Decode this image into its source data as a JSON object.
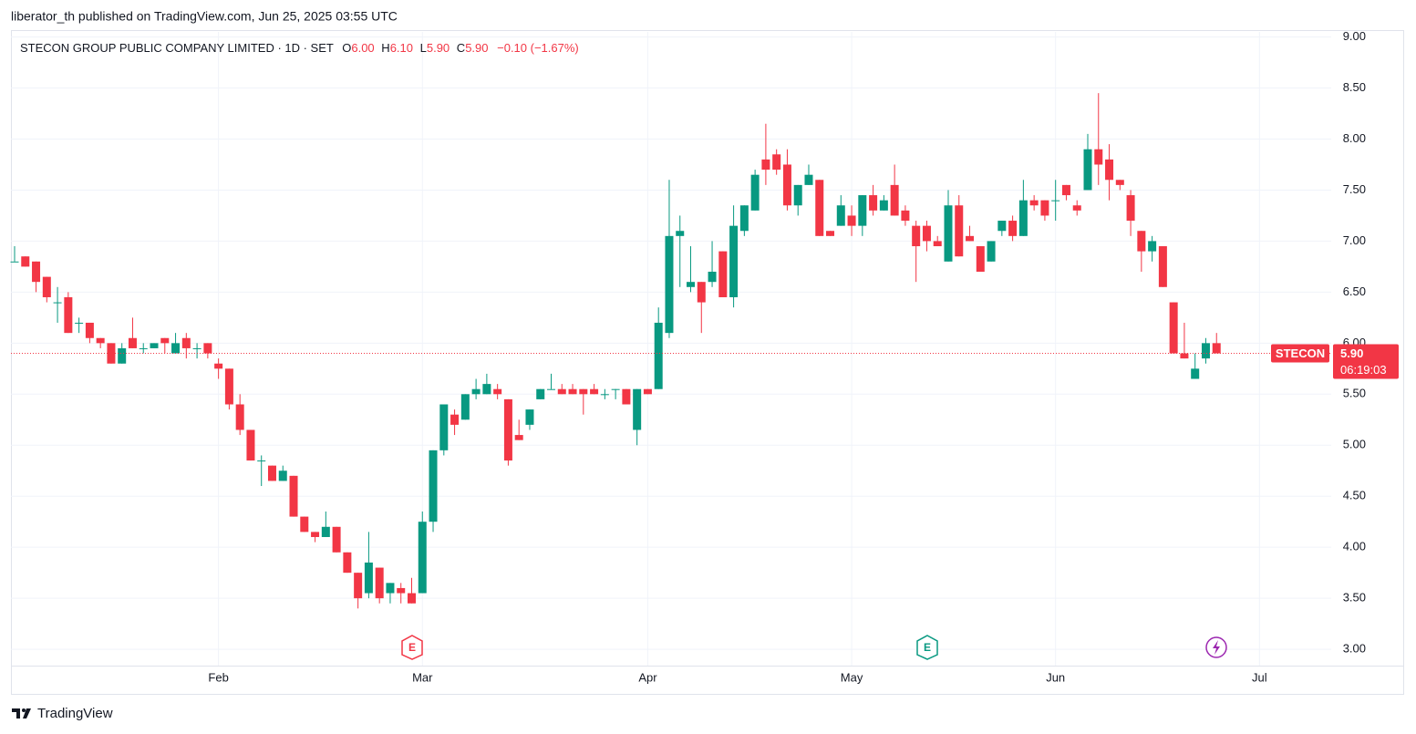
{
  "header": {
    "attribution": "liberator_th published on TradingView.com, Jun 25, 2025 03:55 UTC"
  },
  "footer": {
    "brand": "TradingView"
  },
  "chart_data": {
    "type": "candlestick",
    "title": "STECON GROUP PUBLIC COMPANY LIMITED · 1D · SET",
    "legend": [
      {
        "key": "O",
        "label": "6.00"
      },
      {
        "key": "H",
        "label": "6.10"
      },
      {
        "key": "L",
        "label": "5.90"
      },
      {
        "key": "C",
        "label": "5.90"
      }
    ],
    "change": "−0.10 (−1.67%)",
    "up_color": "#089981",
    "down_color": "#f23645",
    "grid": true,
    "categories": [
      null,
      null,
      null,
      null,
      null,
      null,
      null,
      null,
      null,
      null,
      null,
      null,
      null,
      null,
      null,
      null,
      null,
      null,
      null,
      "Feb",
      null,
      null,
      null,
      null,
      null,
      null,
      null,
      null,
      null,
      null,
      null,
      null,
      null,
      null,
      null,
      null,
      null,
      null,
      "Mar",
      null,
      null,
      null,
      null,
      null,
      null,
      null,
      null,
      null,
      null,
      null,
      null,
      null,
      null,
      null,
      null,
      null,
      null,
      null,
      null,
      "Apr",
      null,
      null,
      null,
      null,
      null,
      null,
      null,
      null,
      null,
      null,
      null,
      null,
      null,
      null,
      null,
      null,
      null,
      null,
      "May",
      null,
      null,
      null,
      null,
      null,
      null,
      null,
      null,
      null,
      null,
      null,
      null,
      null,
      null,
      null,
      null,
      null,
      null,
      "Jun",
      null,
      null,
      null,
      null,
      null,
      null,
      null,
      null,
      null,
      null,
      null,
      null,
      null,
      null,
      null,
      null,
      null,
      null,
      "Jul",
      null,
      null,
      null,
      null,
      null,
      null
    ],
    "open": [
      6.8,
      6.85,
      6.8,
      6.65,
      6.4,
      6.45,
      6.2,
      6.2,
      6.05,
      6.0,
      5.8,
      6.05,
      5.95,
      5.95,
      6.05,
      5.9,
      6.05,
      5.95,
      6.0,
      5.8,
      5.75,
      5.4,
      5.15,
      4.85,
      4.8,
      4.65,
      4.7,
      4.3,
      4.15,
      4.1,
      4.2,
      3.95,
      3.75,
      3.55,
      3.8,
      3.55,
      3.6,
      3.55,
      3.55,
      4.25,
      4.95,
      5.3,
      5.25,
      5.5,
      5.5,
      5.55,
      5.45,
      5.1,
      5.2,
      5.45,
      5.55,
      5.55,
      5.55,
      5.55,
      5.55,
      5.5,
      5.55,
      5.55,
      5.15,
      5.55,
      5.55,
      6.1,
      7.05,
      6.55,
      6.6,
      6.6,
      6.9,
      6.45,
      7.1,
      7.3,
      7.8,
      7.85,
      7.75,
      7.35,
      7.55,
      7.6,
      7.1,
      7.15,
      7.25,
      7.15,
      7.45,
      7.3,
      7.55,
      7.3,
      7.15,
      7.15,
      7.0,
      6.8,
      7.35,
      7.05,
      6.95,
      6.8,
      7.1,
      7.2,
      7.05,
      7.4,
      7.4,
      7.4,
      7.55,
      7.35,
      7.5,
      7.9,
      7.8,
      7.6,
      7.45,
      7.1,
      6.9,
      6.95,
      6.4,
      5.9,
      5.65,
      5.85,
      6.0,
      null,
      null,
      null,
      null,
      null,
      null,
      null,
      null,
      null,
      null
    ],
    "high": [
      6.95,
      6.85,
      6.8,
      6.65,
      6.55,
      6.5,
      6.25,
      6.2,
      6.05,
      6.0,
      6.0,
      6.25,
      6.0,
      6.0,
      6.05,
      6.1,
      6.1,
      6.0,
      6.0,
      5.85,
      5.75,
      5.5,
      5.15,
      4.9,
      4.8,
      4.8,
      4.7,
      4.3,
      4.15,
      4.35,
      4.2,
      3.95,
      3.75,
      4.15,
      3.8,
      3.65,
      3.65,
      3.7,
      4.35,
      4.95,
      5.4,
      5.35,
      5.5,
      5.65,
      5.7,
      5.6,
      5.45,
      5.25,
      5.35,
      5.55,
      5.7,
      5.6,
      5.6,
      5.55,
      5.6,
      5.55,
      5.55,
      5.55,
      5.55,
      5.55,
      6.35,
      7.6,
      7.25,
      6.95,
      6.6,
      7.0,
      6.9,
      7.35,
      7.35,
      7.7,
      8.15,
      7.9,
      7.9,
      7.55,
      7.75,
      7.6,
      7.1,
      7.45,
      7.35,
      7.45,
      7.55,
      7.45,
      7.75,
      7.35,
      7.2,
      7.2,
      7.05,
      7.5,
      7.45,
      7.15,
      6.95,
      7.0,
      7.2,
      7.25,
      7.6,
      7.45,
      7.4,
      7.6,
      7.55,
      7.4,
      8.05,
      8.45,
      7.95,
      7.6,
      7.5,
      7.1,
      7.05,
      6.95,
      6.4,
      6.2,
      5.9,
      6.05,
      6.1,
      null,
      null,
      null,
      null,
      null,
      null,
      null,
      null,
      null,
      null
    ],
    "low": [
      6.8,
      6.75,
      6.5,
      6.4,
      6.2,
      6.1,
      6.1,
      6.0,
      5.95,
      5.8,
      5.8,
      5.95,
      5.9,
      5.95,
      5.9,
      5.9,
      5.85,
      5.85,
      5.85,
      5.65,
      5.35,
      5.1,
      4.85,
      4.6,
      4.65,
      4.65,
      4.3,
      4.15,
      4.05,
      4.1,
      3.95,
      3.75,
      3.4,
      3.5,
      3.45,
      3.45,
      3.45,
      3.45,
      3.55,
      4.15,
      4.9,
      5.1,
      5.25,
      5.45,
      5.5,
      5.45,
      4.8,
      5.05,
      5.15,
      5.45,
      5.55,
      5.5,
      5.5,
      5.3,
      5.5,
      5.45,
      5.45,
      5.4,
      5.0,
      5.5,
      5.55,
      6.05,
      6.55,
      6.5,
      6.1,
      6.55,
      6.45,
      6.35,
      7.05,
      7.3,
      7.55,
      7.65,
      7.3,
      7.25,
      7.55,
      7.05,
      7.05,
      7.15,
      7.05,
      7.05,
      7.25,
      7.3,
      7.25,
      7.15,
      6.6,
      6.9,
      6.95,
      6.8,
      6.85,
      7.0,
      6.7,
      6.8,
      7.05,
      7.0,
      7.05,
      7.3,
      7.2,
      7.2,
      7.4,
      7.25,
      7.5,
      7.55,
      7.4,
      7.5,
      7.05,
      6.7,
      6.8,
      6.55,
      5.9,
      5.85,
      5.65,
      5.8,
      5.9,
      null,
      null,
      null,
      null,
      null,
      null,
      null,
      null,
      null,
      null
    ],
    "close": [
      6.8,
      6.75,
      6.6,
      6.45,
      6.4,
      6.1,
      6.2,
      6.05,
      6.0,
      5.8,
      5.95,
      5.95,
      5.95,
      6.0,
      6.0,
      6.0,
      5.95,
      5.95,
      5.9,
      5.75,
      5.4,
      5.15,
      4.85,
      4.85,
      4.65,
      4.75,
      4.3,
      4.15,
      4.1,
      4.2,
      3.95,
      3.75,
      3.5,
      3.85,
      3.5,
      3.65,
      3.55,
      3.45,
      4.25,
      4.95,
      5.4,
      5.2,
      5.5,
      5.55,
      5.6,
      5.5,
      4.85,
      5.05,
      5.35,
      5.55,
      5.55,
      5.5,
      5.5,
      5.5,
      5.5,
      5.5,
      5.55,
      5.4,
      5.55,
      5.5,
      6.2,
      7.05,
      7.1,
      6.6,
      6.4,
      6.7,
      6.45,
      7.15,
      7.35,
      7.65,
      7.7,
      7.7,
      7.35,
      7.55,
      7.65,
      7.05,
      7.05,
      7.35,
      7.15,
      7.45,
      7.3,
      7.4,
      7.25,
      7.2,
      6.95,
      7.0,
      6.95,
      7.35,
      6.85,
      7.0,
      6.7,
      7.0,
      7.2,
      7.05,
      7.4,
      7.35,
      7.25,
      7.4,
      7.45,
      7.3,
      7.9,
      7.75,
      7.6,
      7.55,
      7.2,
      6.9,
      7.0,
      6.55,
      5.9,
      5.85,
      5.75,
      6.0,
      5.9,
      null,
      null,
      null,
      null,
      null,
      null,
      null,
      null,
      null,
      null
    ],
    "ylim": [
      2.84,
      9.05
    ],
    "yticks": [
      {
        "value": 3,
        "label": "3.00"
      },
      {
        "value": 3.5,
        "label": "3.50"
      },
      {
        "value": 4,
        "label": "4.00"
      },
      {
        "value": 4.5,
        "label": "4.50"
      },
      {
        "value": 5,
        "label": "5.00"
      },
      {
        "value": 5.5,
        "label": "5.50"
      },
      {
        "value": 6,
        "label": "6.00"
      },
      {
        "value": 6.5,
        "label": "6.50"
      },
      {
        "value": 7,
        "label": "7.00"
      },
      {
        "value": 7.5,
        "label": "7.50"
      },
      {
        "value": 8,
        "label": "8.00"
      },
      {
        "value": 8.5,
        "label": "8.50"
      },
      {
        "value": 9,
        "label": "9.00"
      }
    ],
    "last_price": {
      "symbol": "STECON",
      "value": 5.9,
      "label": "5.90",
      "countdown": "06:19:03"
    },
    "events": [
      "E",
      "E"
    ]
  }
}
